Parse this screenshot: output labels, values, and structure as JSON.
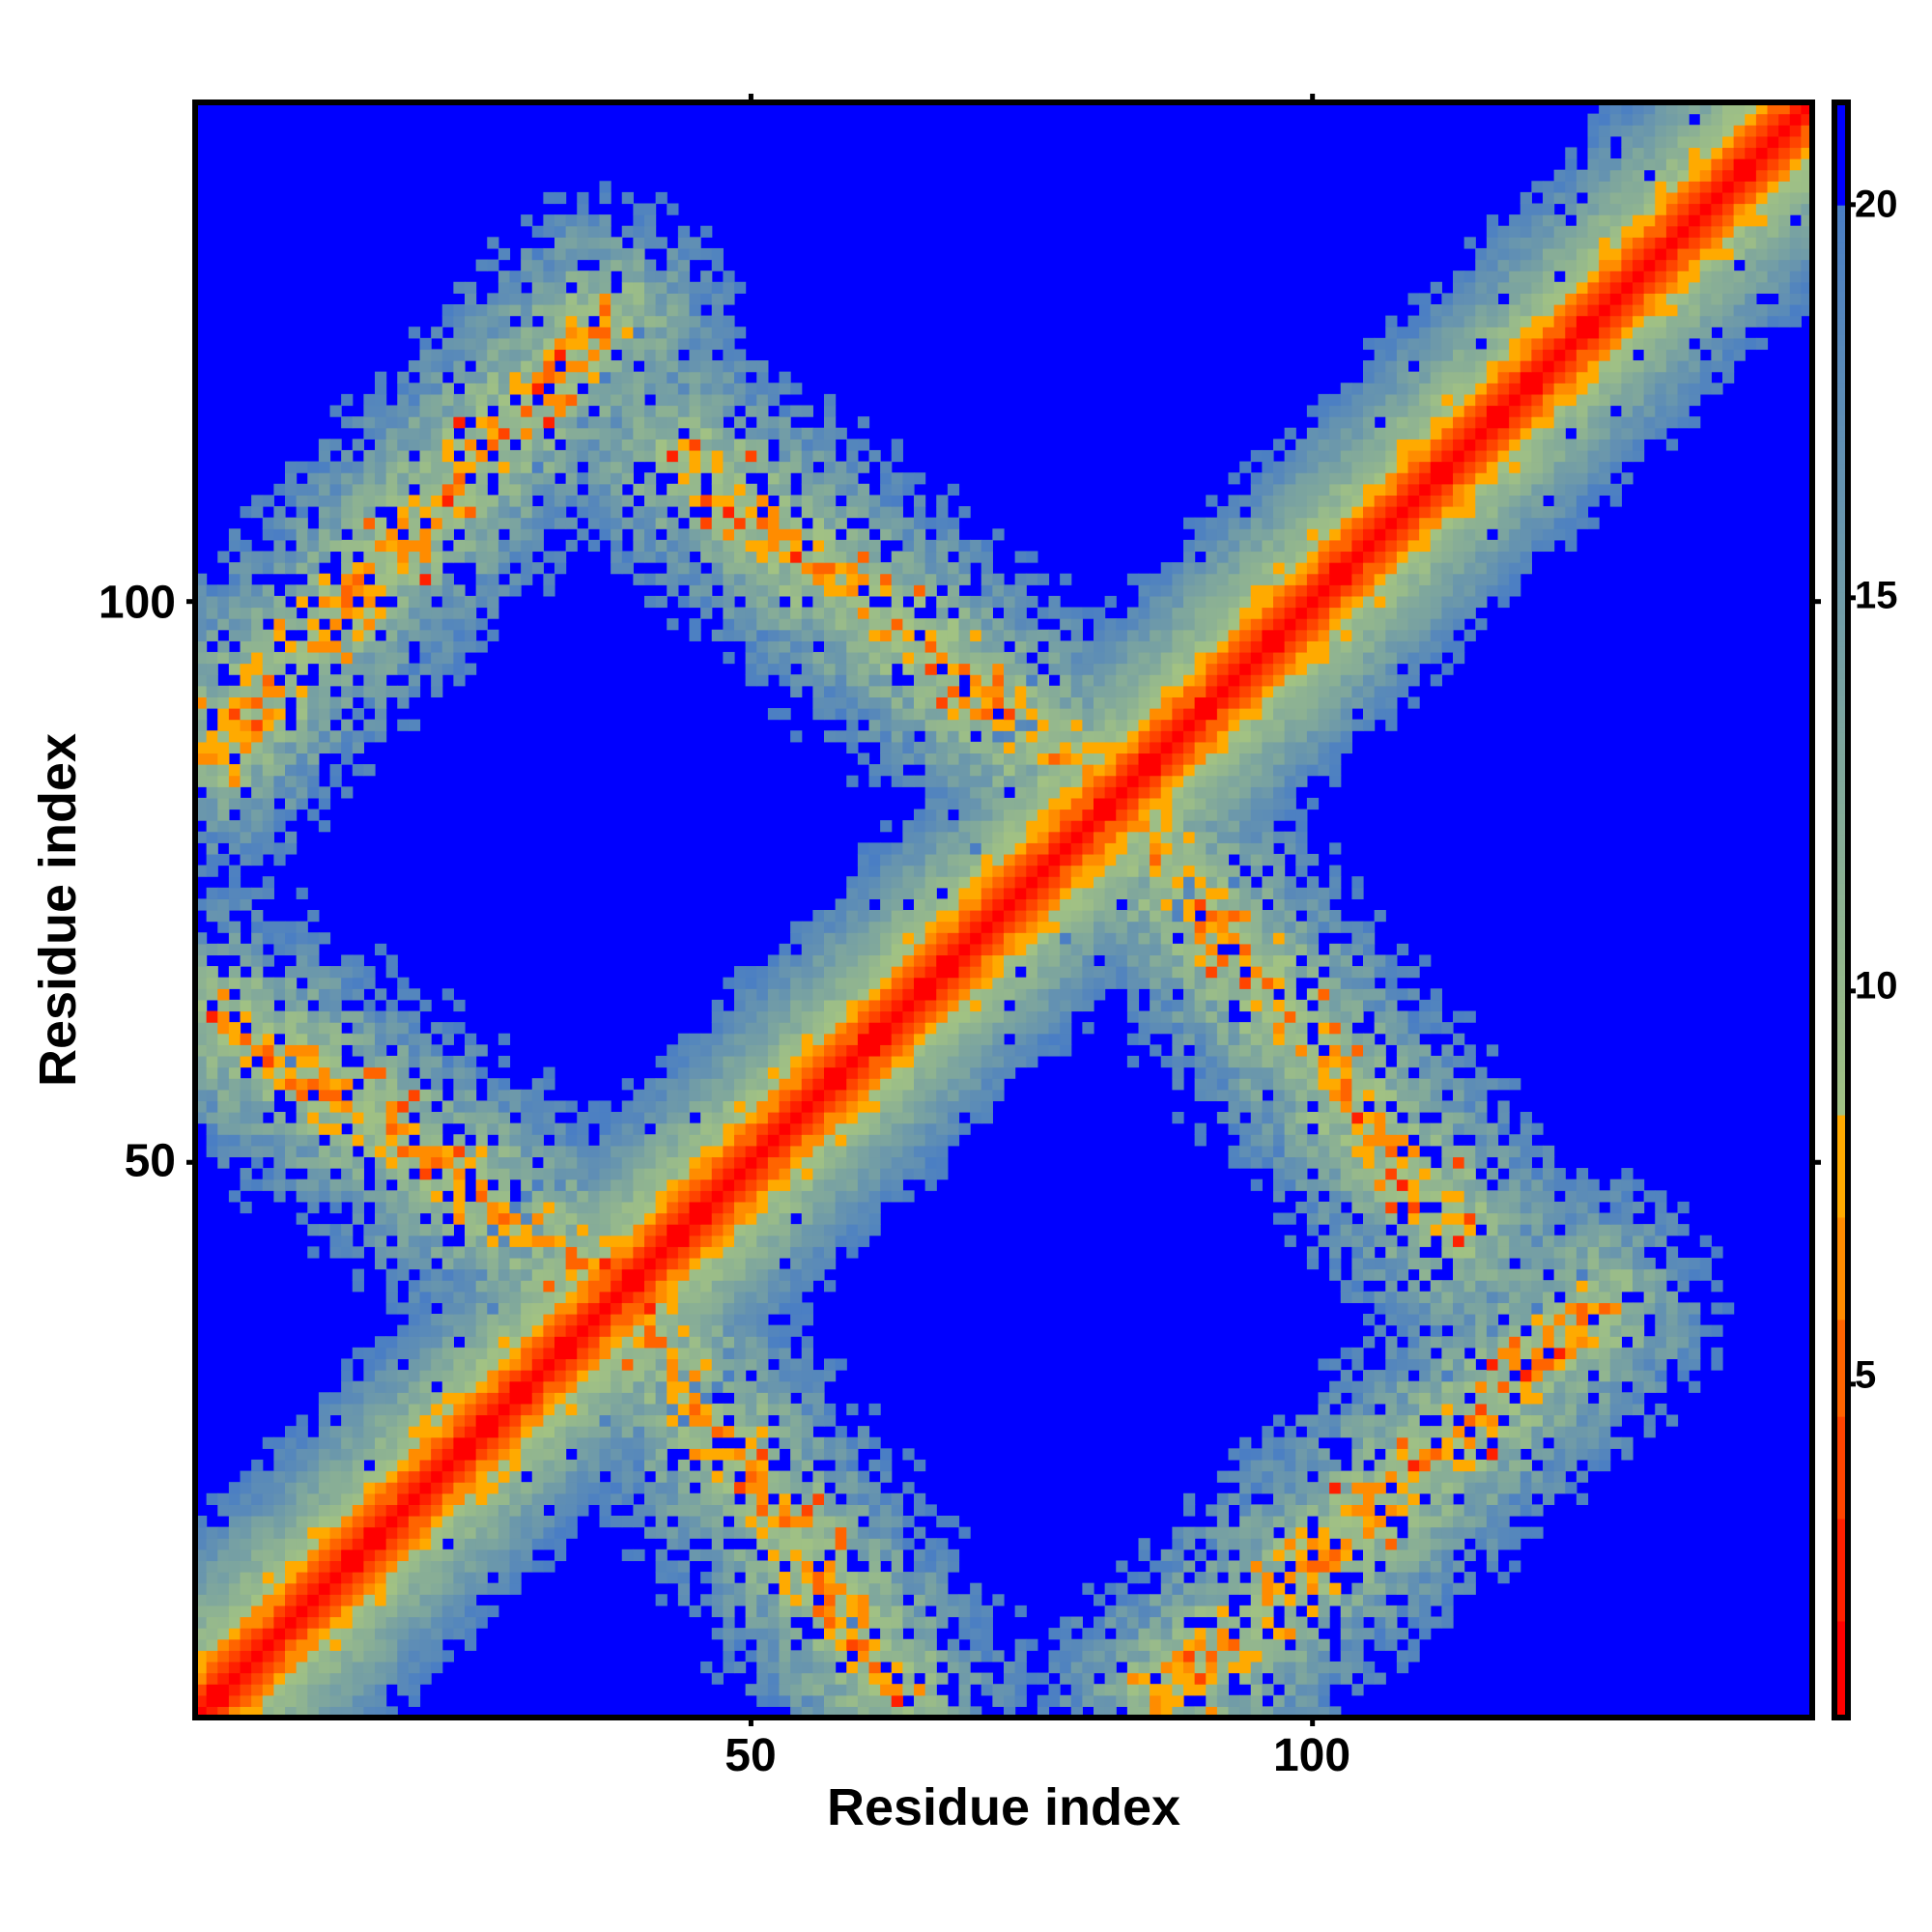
{
  "chart_data": {
    "type": "heatmap",
    "title": "",
    "xlabel": "Residue index",
    "ylabel": "Residue index",
    "x_range": [
      1,
      144
    ],
    "y_range": [
      1,
      144
    ],
    "xticks": [
      {
        "value": 50,
        "label": "50"
      },
      {
        "value": 100,
        "label": "100"
      }
    ],
    "yticks": [
      {
        "value": 50,
        "label": "50"
      },
      {
        "value": 100,
        "label": "100"
      }
    ],
    "colorbar": {
      "range": [
        0.76,
        21.3
      ],
      "ticks": [
        {
          "value": 5,
          "label": "5"
        },
        {
          "value": 10,
          "label": "10"
        },
        {
          "value": 15,
          "label": "15"
        },
        {
          "value": 20,
          "label": "20"
        }
      ],
      "discrete_bins": [
        {
          "from": 0.76,
          "to": 2.0,
          "color": "#ff0000"
        },
        {
          "from": 2.0,
          "to": 3.3,
          "color": "#ff2000"
        },
        {
          "from": 3.3,
          "to": 4.56,
          "color": "#ff4400"
        },
        {
          "from": 4.56,
          "to": 5.85,
          "color": "#ff6400"
        },
        {
          "from": 5.85,
          "to": 7.15,
          "color": "#ff8c00"
        },
        {
          "from": 7.15,
          "to": 8.4,
          "color": "#ffaa00"
        }
      ],
      "gradient": {
        "from": 8.4,
        "to": 20,
        "color_low": "#a2c283",
        "color_high": "#4a7ec4"
      },
      "above_color": "#0000ff"
    },
    "grid": false,
    "legend": "right",
    "matrix_model": {
      "symmetric": true,
      "diagonal_band": {
        "red_offset_max": 2,
        "orange_offset_max": 4,
        "fade_offset": 16
      },
      "contact_strips": [
        {
          "name": "antiparallel-1",
          "from": [
            40,
            36
          ],
          "to": [
            63,
            3
          ]
        },
        {
          "name": "parallel-1",
          "from": [
            87,
            2
          ],
          "to": [
            125,
            37
          ]
        },
        {
          "name": "antiparallel-2",
          "from": [
            84,
            80
          ],
          "to": [
            113,
            44
          ]
        }
      ]
    }
  }
}
